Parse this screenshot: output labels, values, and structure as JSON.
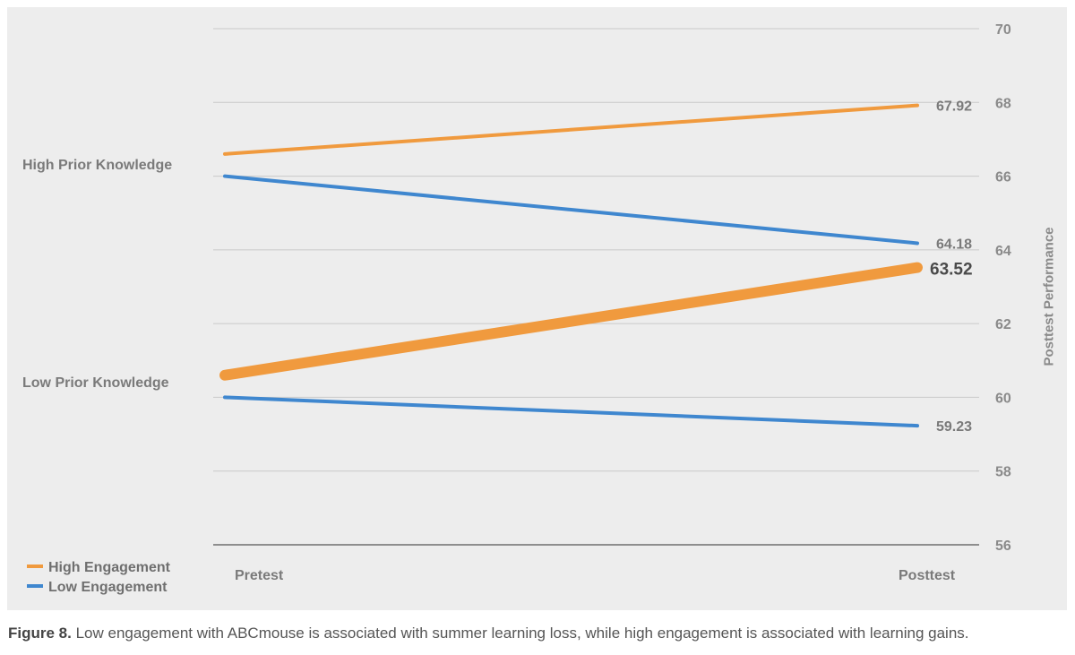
{
  "chart_data": {
    "type": "line",
    "categories": [
      "Pretest",
      "Posttest"
    ],
    "y_axis": {
      "label": "Posttest Performance",
      "min": 56,
      "max": 70,
      "ticks": [
        56,
        58,
        60,
        62,
        64,
        66,
        68,
        70
      ],
      "position": "right"
    },
    "grid": true,
    "row_labels": [
      "High Prior Knowledge",
      "Low Prior Knowledge"
    ],
    "legend": {
      "placement": "bottom-left",
      "entries": [
        {
          "label": "High Engagement",
          "color": "#f09a3e"
        },
        {
          "label": "Low Engagement",
          "color": "#3f87cf"
        }
      ]
    },
    "series": [
      {
        "group": "High Prior Knowledge",
        "engagement": "High Engagement",
        "color": "#f09a3e",
        "emphasis": false,
        "values": [
          66.6,
          67.92
        ],
        "end_label": "67.92"
      },
      {
        "group": "High Prior Knowledge",
        "engagement": "Low Engagement",
        "color": "#3f87cf",
        "emphasis": false,
        "values": [
          66.0,
          64.18
        ],
        "end_label": "64.18"
      },
      {
        "group": "Low Prior Knowledge",
        "engagement": "High Engagement",
        "color": "#f09a3e",
        "emphasis": true,
        "values": [
          60.6,
          63.52
        ],
        "end_label": "63.52"
      },
      {
        "group": "Low Prior Knowledge",
        "engagement": "Low Engagement",
        "color": "#3f87cf",
        "emphasis": false,
        "values": [
          60.0,
          59.23
        ],
        "end_label": "59.23"
      }
    ]
  },
  "caption": {
    "prefix": "Figure 8.",
    "text": " Low engagement with ABCmouse is associated with summer learning loss, while high engagement is associated with learning gains."
  }
}
